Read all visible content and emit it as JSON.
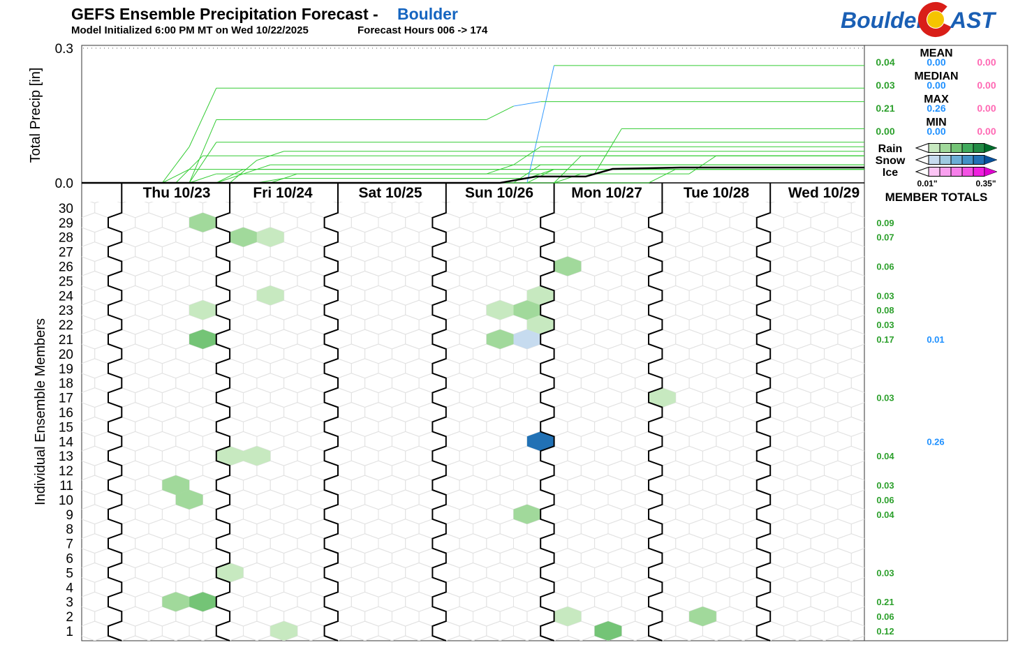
{
  "header": {
    "title": "GEFS Ensemble Precipitation Forecast -",
    "location": "Boulder",
    "init": "Model Initialized 6:00 PM MT on Wed 10/22/2025",
    "hours": "Forecast Hours 006 -> 174"
  },
  "logo": {
    "left": "Boulder",
    "right": "AST"
  },
  "colors": {
    "rain_line": "#33cc33",
    "snow_line": "#3399ff",
    "rain_text": "#2ca02c",
    "snow_text": "#1e90ff",
    "ice_text": "#ff69b4",
    "title_accent": "#1565c0",
    "rain": [
      "#c7e9c0",
      "#a1d99b",
      "#74c476",
      "#41ab5d",
      "#238b45",
      "#006d2c"
    ],
    "snow": [
      "#c6dbef",
      "#9ecae1",
      "#6baed6",
      "#4292c6",
      "#2171b5",
      "#08519c"
    ],
    "ice": [
      "#fcc5f5",
      "#f9a0ef",
      "#f77fea",
      "#f452e4",
      "#f020df",
      "#e000d0"
    ]
  },
  "stats": [
    {
      "label": "MEAN",
      "rain": "0.04",
      "snow": "0.00",
      "ice": "0.00"
    },
    {
      "label": "MEDIAN",
      "rain": "0.03",
      "snow": "0.00",
      "ice": "0.00"
    },
    {
      "label": "MAX",
      "rain": "0.21",
      "snow": "0.26",
      "ice": "0.00"
    },
    {
      "label": "MIN",
      "rain": "0.00",
      "snow": "0.00",
      "ice": "0.00"
    }
  ],
  "legend": {
    "rows": [
      "Rain",
      "Snow",
      "Ice"
    ],
    "min_label": "0.01\"",
    "max_label": "0.35\"",
    "title": "MEMBER TOTALS"
  },
  "chart_data": [
    {
      "type": "line",
      "ylabel": "Total Precip [in]",
      "ylim": [
        0,
        0.3
      ],
      "yticks": [
        "0.0",
        "0.3"
      ],
      "grid": false,
      "bold_line": [
        [
          90,
          0
        ],
        [
          98,
          0.014
        ],
        [
          109,
          0.014
        ],
        [
          115,
          0.031
        ],
        [
          130,
          0.034
        ],
        [
          174,
          0.034
        ]
      ]
    },
    {
      "type": "heatmap",
      "ylabel": "Individual Ensemble Members",
      "days": [
        "Thu 10/23",
        "Fri 10/24",
        "Sat 10/25",
        "Sun 10/26",
        "Mon 10/27",
        "Tue 10/28",
        "Wed 10/29"
      ],
      "members": [
        1,
        2,
        3,
        4,
        5,
        6,
        7,
        8,
        9,
        10,
        11,
        12,
        13,
        14,
        15,
        16,
        17,
        18,
        19,
        20,
        21,
        22,
        23,
        24,
        25,
        26,
        27,
        28,
        29,
        30
      ],
      "cells": [
        {
          "member": 29,
          "fhr": 27,
          "type": "rain",
          "level": 2,
          "value": 0.09
        },
        {
          "member": 28,
          "fhr": 36,
          "type": "rain",
          "level": 2,
          "value": 0.05
        },
        {
          "member": 28,
          "fhr": 42,
          "type": "rain",
          "level": 1,
          "value": 0.02
        },
        {
          "member": 26,
          "fhr": 108,
          "type": "rain",
          "level": 2,
          "value": 0.06
        },
        {
          "member": 24,
          "fhr": 42,
          "type": "rain",
          "level": 1,
          "value": 0.01
        },
        {
          "member": 24,
          "fhr": 102,
          "type": "rain",
          "level": 1,
          "value": 0.02
        },
        {
          "member": 23,
          "fhr": 27,
          "type": "rain",
          "level": 1,
          "value": 0.02
        },
        {
          "member": 23,
          "fhr": 93,
          "type": "rain",
          "level": 1,
          "value": 0.02
        },
        {
          "member": 23,
          "fhr": 99,
          "type": "rain",
          "level": 2,
          "value": 0.04
        },
        {
          "member": 22,
          "fhr": 102,
          "type": "rain",
          "level": 1,
          "value": 0.03
        },
        {
          "member": 21,
          "fhr": 27,
          "type": "rain",
          "level": 3,
          "value": 0.14
        },
        {
          "member": 21,
          "fhr": 93,
          "type": "rain",
          "level": 2,
          "value": 0.03
        },
        {
          "member": 21,
          "fhr": 99,
          "type": "snow",
          "level": 1,
          "value": 0.01
        },
        {
          "member": 17,
          "fhr": 129,
          "type": "rain",
          "level": 1,
          "value": 0.03
        },
        {
          "member": 14,
          "fhr": 102,
          "type": "snow",
          "level": 5,
          "value": 0.26
        },
        {
          "member": 13,
          "fhr": 33,
          "type": "rain",
          "level": 1,
          "value": 0.02
        },
        {
          "member": 13,
          "fhr": 39,
          "type": "rain",
          "level": 1,
          "value": 0.02
        },
        {
          "member": 11,
          "fhr": 21,
          "type": "rain",
          "level": 2,
          "value": 0.03
        },
        {
          "member": 10,
          "fhr": 24,
          "type": "rain",
          "level": 2,
          "value": 0.06
        },
        {
          "member": 9,
          "fhr": 99,
          "type": "rain",
          "level": 2,
          "value": 0.04
        },
        {
          "member": 5,
          "fhr": 33,
          "type": "rain",
          "level": 1,
          "value": 0.03
        },
        {
          "member": 3,
          "fhr": 21,
          "type": "rain",
          "level": 2,
          "value": 0.08
        },
        {
          "member": 3,
          "fhr": 27,
          "type": "rain",
          "level": 3,
          "value": 0.13
        },
        {
          "member": 2,
          "fhr": 108,
          "type": "rain",
          "level": 1,
          "value": 0.02
        },
        {
          "member": 2,
          "fhr": 138,
          "type": "rain",
          "level": 2,
          "value": 0.04
        },
        {
          "member": 1,
          "fhr": 45,
          "type": "rain",
          "level": 1,
          "value": 0.02
        },
        {
          "member": 1,
          "fhr": 117,
          "type": "rain",
          "level": 3,
          "value": 0.1
        }
      ],
      "member_totals": [
        {
          "member": 29,
          "rain": "0.09"
        },
        {
          "member": 28,
          "rain": "0.07"
        },
        {
          "member": 26,
          "rain": "0.06"
        },
        {
          "member": 24,
          "rain": "0.03"
        },
        {
          "member": 23,
          "rain": "0.08"
        },
        {
          "member": 22,
          "rain": "0.03"
        },
        {
          "member": 21,
          "rain": "0.17",
          "snow": "0.01"
        },
        {
          "member": 17,
          "rain": "0.03"
        },
        {
          "member": 14,
          "snow": "0.26"
        },
        {
          "member": 13,
          "rain": "0.04"
        },
        {
          "member": 11,
          "rain": "0.03"
        },
        {
          "member": 10,
          "rain": "0.06"
        },
        {
          "member": 9,
          "rain": "0.04"
        },
        {
          "member": 5,
          "rain": "0.03"
        },
        {
          "member": 3,
          "rain": "0.21"
        },
        {
          "member": 2,
          "rain": "0.06"
        },
        {
          "member": 1,
          "rain": "0.12"
        }
      ]
    }
  ]
}
